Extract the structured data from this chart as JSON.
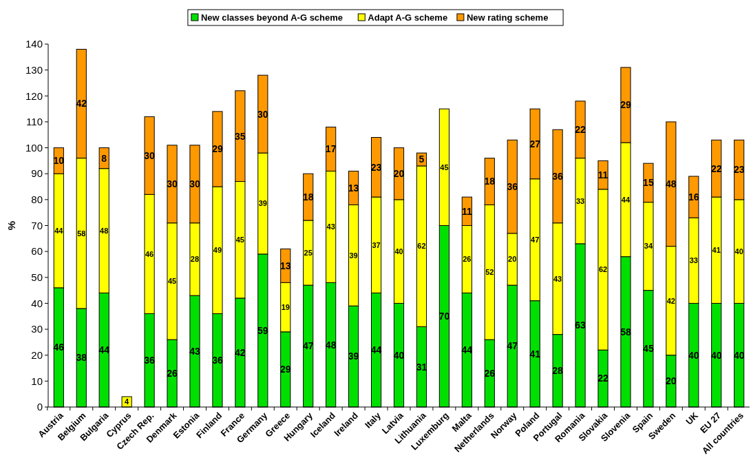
{
  "chart_data": {
    "type": "bar",
    "stacked": true,
    "ylabel": "%",
    "ylim": [
      0,
      140
    ],
    "yticks": [
      0,
      10,
      20,
      30,
      40,
      50,
      60,
      70,
      80,
      90,
      100,
      110,
      120,
      130,
      140
    ],
    "grid": false,
    "legend": "top",
    "data_labels": true,
    "categories": [
      "Austria",
      "Belgium",
      "Bulgaria",
      "Cyprus",
      "Czech Rep.",
      "Denmark",
      "Estonia",
      "Finland",
      "France",
      "Germany",
      "Greece",
      "Hungary",
      "Iceland",
      "Ireland",
      "Italy",
      "Latvia",
      "Lithuania",
      "Luxemburg",
      "Malta",
      "Netherlands",
      "Norway",
      "Poland",
      "Portugal",
      "Romania",
      "Slovakia",
      "Slovenia",
      "Spain",
      "Sweden",
      "UK",
      "EU 27",
      "All countries"
    ],
    "series": [
      {
        "name": "New classes beyond A-G scheme",
        "color": "#00e000",
        "values": [
          46,
          38,
          44,
          null,
          36,
          26,
          43,
          36,
          42,
          59,
          29,
          47,
          48,
          39,
          44,
          40,
          31,
          70,
          44,
          26,
          47,
          41,
          28,
          63,
          22,
          58,
          45,
          20,
          40,
          40,
          40
        ]
      },
      {
        "name": "Adapt A-G scheme",
        "color": "#ffff00",
        "values": [
          44,
          58,
          48,
          4,
          46,
          45,
          28,
          49,
          45,
          39,
          19,
          25,
          43,
          39,
          37,
          40,
          62,
          45,
          26,
          52,
          20,
          47,
          43,
          33,
          62,
          44,
          34,
          42,
          33,
          41,
          40
        ]
      },
      {
        "name": "New rating scheme",
        "color": "#ff9900",
        "values": [
          10,
          42,
          8,
          null,
          30,
          30,
          30,
          29,
          35,
          30,
          13,
          18,
          17,
          13,
          23,
          20,
          5,
          null,
          11,
          18,
          36,
          27,
          36,
          22,
          11,
          29,
          15,
          48,
          16,
          22,
          23
        ]
      }
    ]
  }
}
